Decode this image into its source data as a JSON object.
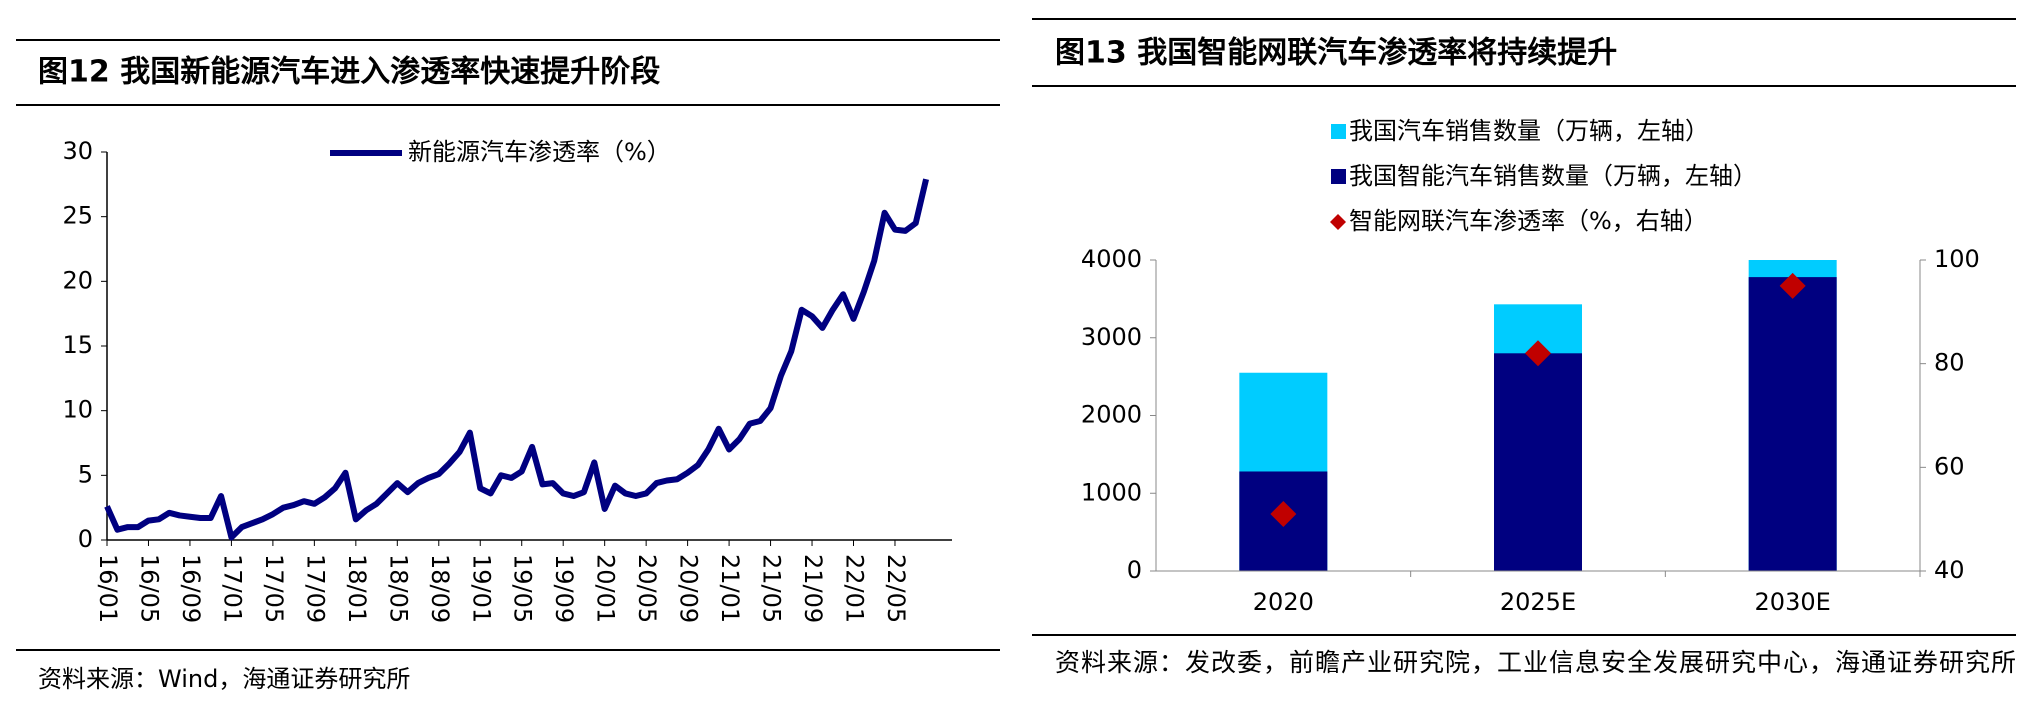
{
  "chart_data": [
    {
      "type": "line",
      "title": "图12 我国新能源汽车进入渗透率快速提升阶段",
      "source": "资料来源：Wind，海通证券研究所",
      "categories": [
        "16/01",
        null,
        null,
        null,
        "16/05",
        null,
        null,
        null,
        "16/09",
        null,
        null,
        null,
        "17/01",
        null,
        null,
        null,
        "17/05",
        null,
        null,
        null,
        "17/09",
        null,
        null,
        null,
        "18/01",
        null,
        null,
        null,
        "18/05",
        null,
        null,
        null,
        "18/09",
        null,
        null,
        null,
        "19/01",
        null,
        null,
        null,
        "19/05",
        null,
        null,
        null,
        "19/09",
        null,
        null,
        null,
        "20/01",
        null,
        null,
        null,
        "20/05",
        null,
        null,
        null,
        "20/09",
        null,
        null,
        null,
        "21/01",
        null,
        null,
        null,
        "21/05",
        null,
        null,
        null,
        "21/09",
        null,
        null,
        null,
        "22/01",
        null,
        null,
        null,
        "22/05",
        null,
        null,
        null
      ],
      "series": [
        {
          "name": "新能源汽车渗透率（%）",
          "color": "#000080",
          "values": [
            2.6,
            0.8,
            1.0,
            1.0,
            1.5,
            1.6,
            2.1,
            1.9,
            1.8,
            1.7,
            1.7,
            3.4,
            0.2,
            1.0,
            1.3,
            1.6,
            2.0,
            2.5,
            2.7,
            3.0,
            2.8,
            3.3,
            4.0,
            5.2,
            1.6,
            2.3,
            2.8,
            3.6,
            4.4,
            3.7,
            4.4,
            4.8,
            5.1,
            5.9,
            6.8,
            8.3,
            4.0,
            3.6,
            5.0,
            4.8,
            5.3,
            7.2,
            4.3,
            4.4,
            3.6,
            3.4,
            3.7,
            6.0,
            2.4,
            4.2,
            3.6,
            3.4,
            3.6,
            4.4,
            4.6,
            4.7,
            5.2,
            5.8,
            7.0,
            8.6,
            7.0,
            7.8,
            9.0,
            9.2,
            10.2,
            12.7,
            14.6,
            17.8,
            17.3,
            16.4,
            17.8,
            19.0,
            17.1,
            19.2,
            21.6,
            25.3,
            24.0,
            23.9,
            24.5,
            27.9
          ]
        }
      ],
      "ylim": [
        0,
        30
      ],
      "yticks": [
        0,
        5,
        10,
        15,
        20,
        25,
        30
      ],
      "legend": "top"
    },
    {
      "type": "bar",
      "title": "图13 我国智能网联汽车渗透率将持续提升",
      "source": "资料来源：发改委，前瞻产业研究院，工业信息安全发展研究中心，海通证券研究所",
      "categories": [
        "2020",
        "2025E",
        "2030E"
      ],
      "series": [
        {
          "name": "我国汽车销售数量（万辆，左轴）",
          "color": "#00ccff",
          "values": [
            2550,
            3430,
            4000
          ]
        },
        {
          "name": "我国智能汽车销售数量（万辆，左轴）",
          "color": "#000080",
          "values": [
            1280,
            2800,
            3780
          ]
        },
        {
          "name": "智能网联汽车渗透率（%，右轴）",
          "color": "#c00000",
          "values": [
            51,
            82,
            95
          ],
          "axis": "y2",
          "type": "scatter"
        }
      ],
      "ylim": [
        0,
        4000
      ],
      "yticks": [
        0,
        1000,
        2000,
        3000,
        4000
      ],
      "y2lim": [
        40,
        100
      ],
      "y2ticks": [
        40,
        60,
        80,
        100
      ],
      "legend": "top"
    }
  ]
}
